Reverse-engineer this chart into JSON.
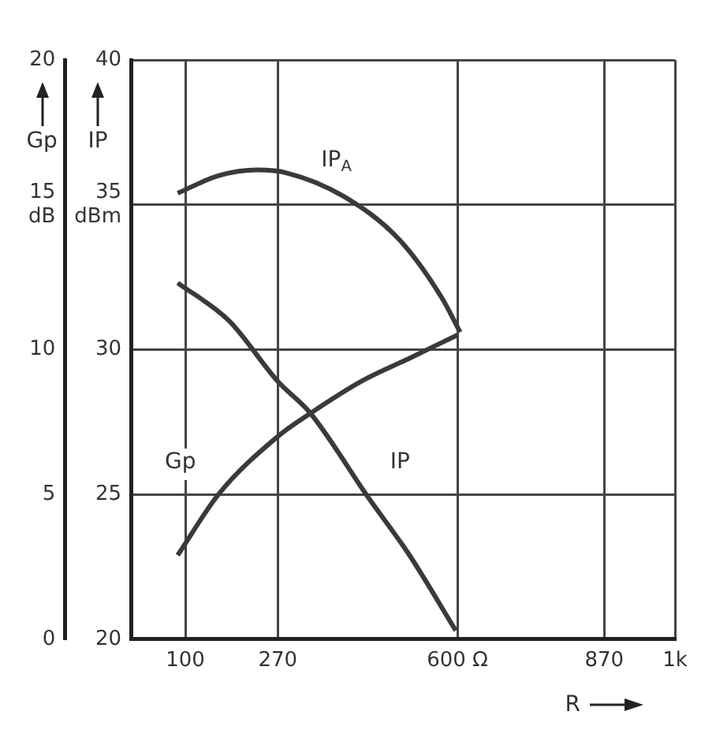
{
  "chart_data": {
    "type": "line",
    "xlabel": "R",
    "ylabel": "Gp",
    "y2label": "IP",
    "marker": "none",
    "grid": true,
    "xlim": [
      0,
      1000
    ],
    "xticks": [
      100,
      270,
      {
        "value": 600,
        "label": "600 Ω"
      },
      870,
      {
        "value": 1000,
        "label": "1k"
      }
    ],
    "ylim": [
      0,
      20
    ],
    "yticks": [
      0,
      5,
      10,
      {
        "value": 15,
        "label": "15\ndB"
      },
      20
    ],
    "y2lim": [
      20,
      40
    ],
    "y2ticks": [
      20,
      25,
      30,
      {
        "value": 35,
        "label": "35\ndBm"
      },
      40
    ],
    "series": [
      {
        "name": "Gp",
        "color": "#3a3a3a",
        "axis": "y",
        "x": [
          86,
          161,
          270,
          330,
          423,
          512,
          600
        ],
        "values": [
          2.9,
          5.0,
          7.0,
          7.8,
          8.9,
          9.7,
          10.5
        ]
      },
      {
        "name": "IP",
        "color": "#3a3a3a",
        "axis": "y2",
        "x": [
          86,
          180,
          270,
          330,
          436,
          512,
          597
        ],
        "values": [
          32.3,
          31.0,
          28.9,
          27.8,
          24.9,
          22.9,
          20.3
        ]
      },
      {
        "name": "IP$_{A}$",
        "color": "#3a3a3a",
        "axis": "y2",
        "x": [
          86,
          161,
          233,
          286,
          390,
          493,
          571,
          605
        ],
        "values": [
          35.4,
          36.0,
          36.2,
          36.1,
          35.3,
          33.8,
          31.8,
          30.6
        ]
      }
    ]
  }
}
